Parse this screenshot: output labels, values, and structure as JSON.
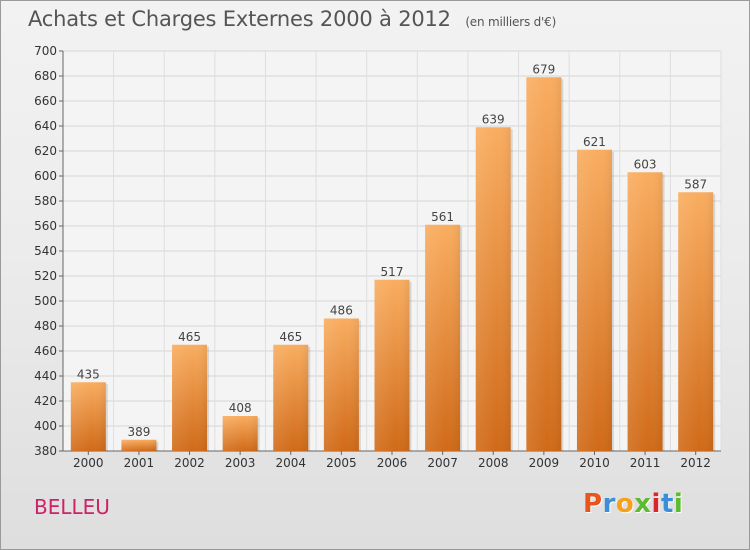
{
  "header": {
    "title": "Achats et Charges Externes 2000 à 2012",
    "subtitle": "(en milliers d'€)"
  },
  "footer": {
    "commune": "BELLEU",
    "logo_text": "Proxiti"
  },
  "colors": {
    "bar_light": "#f7a85a",
    "bar_dark": "#d4701c",
    "commune_text": "#cc2266",
    "logo_letters": [
      "#e8541c",
      "#3b8ed8",
      "#f7a01c",
      "#5dbb2e",
      "#d8262c",
      "#3b8ed8",
      "#5dbb2e"
    ]
  },
  "chart_data": {
    "type": "bar",
    "categories": [
      "2000",
      "2001",
      "2002",
      "2003",
      "2004",
      "2005",
      "2006",
      "2007",
      "2008",
      "2009",
      "2010",
      "2011",
      "2012"
    ],
    "values": [
      435,
      389,
      465,
      408,
      465,
      486,
      517,
      561,
      639,
      679,
      621,
      603,
      587
    ],
    "ylim": [
      380,
      700
    ],
    "yticks": [
      380,
      400,
      420,
      440,
      460,
      480,
      500,
      520,
      540,
      560,
      580,
      600,
      620,
      640,
      660,
      680,
      700
    ],
    "grid": true,
    "data_labels": true
  }
}
